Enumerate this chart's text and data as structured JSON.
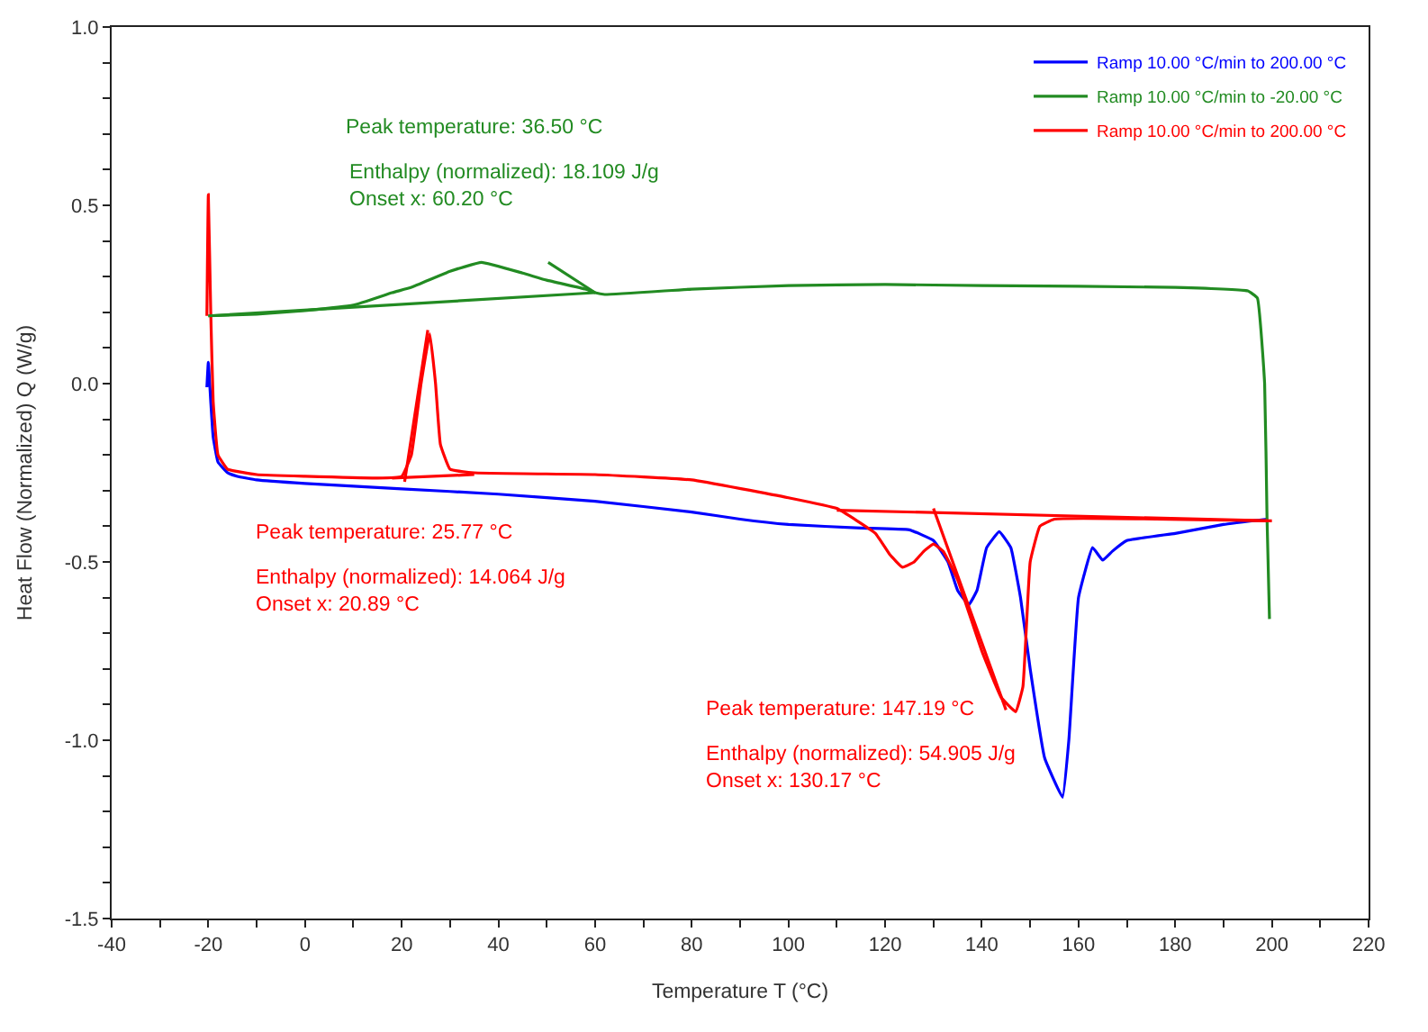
{
  "chart_data": {
    "type": "line",
    "xlabel": "Temperature T (°C)",
    "ylabel": "Heat Flow (Normalized) Q (W/g)",
    "xlim": [
      -40,
      220
    ],
    "ylim": [
      -1.5,
      1.0
    ],
    "xticks": [
      -40,
      {
        "value": -30,
        "label": null
      },
      -20,
      {
        "value": -10,
        "label": null
      },
      0,
      {
        "value": 10,
        "label": null
      },
      20,
      {
        "value": 30,
        "label": null
      },
      40,
      {
        "value": 50,
        "label": null
      },
      60,
      {
        "value": 70,
        "label": null
      },
      80,
      {
        "value": 90,
        "label": null
      },
      100,
      {
        "value": 110,
        "label": null
      },
      120,
      {
        "value": 130,
        "label": null
      },
      140,
      {
        "value": 150,
        "label": null
      },
      160,
      {
        "value": 170,
        "label": null
      },
      180,
      {
        "value": 190,
        "label": null
      },
      200,
      {
        "value": 210,
        "label": null
      },
      220
    ],
    "yticks": [
      {
        "value": -1.5,
        "label": "-1.5"
      },
      {
        "value": -1.4,
        "label": null
      },
      {
        "value": -1.3,
        "label": null
      },
      {
        "value": -1.2,
        "label": null
      },
      {
        "value": -1.1,
        "label": null
      },
      {
        "value": -1.0,
        "label": "-1.0"
      },
      {
        "value": -0.9,
        "label": null
      },
      {
        "value": -0.8,
        "label": null
      },
      {
        "value": -0.7,
        "label": null
      },
      {
        "value": -0.6,
        "label": null
      },
      {
        "value": -0.5,
        "label": "-0.5"
      },
      {
        "value": -0.4,
        "label": null
      },
      {
        "value": -0.3,
        "label": null
      },
      {
        "value": -0.2,
        "label": null
      },
      {
        "value": -0.1,
        "label": null
      },
      {
        "value": 0,
        "label": "0.0"
      },
      {
        "value": 0.1,
        "label": null
      },
      {
        "value": 0.2,
        "label": null
      },
      {
        "value": 0.3,
        "label": null
      },
      {
        "value": 0.4,
        "label": null
      },
      {
        "value": 0.5,
        "label": "0.5"
      },
      {
        "value": 0.6,
        "label": null
      },
      {
        "value": 0.7,
        "label": null
      },
      {
        "value": 0.8,
        "label": null
      },
      {
        "value": 0.9,
        "label": null
      },
      {
        "value": 1.0,
        "label": "1.0"
      }
    ],
    "legend": "top right",
    "marker": "none",
    "line_style": "solid",
    "series": [
      {
        "name": "Ramp 10.00 °C/min to 200.00 °C",
        "color": "#0000ff",
        "x": [
          -20.3,
          -20,
          -19.5,
          -19,
          -18,
          -16,
          -14,
          -10,
          0,
          20,
          40,
          60,
          80,
          90,
          100,
          115,
          125,
          130,
          133,
          135,
          137.3,
          139,
          141,
          143.6,
          146,
          148,
          150,
          153,
          156.7,
          158,
          160,
          162.9,
          165,
          167,
          170,
          180,
          190,
          199
        ],
        "values": [
          -0.01,
          0.06,
          -0.05,
          -0.15,
          -0.22,
          -0.25,
          -0.26,
          -0.27,
          -0.28,
          -0.295,
          -0.31,
          -0.33,
          -0.36,
          -0.38,
          -0.395,
          -0.405,
          -0.41,
          -0.44,
          -0.5,
          -0.58,
          -0.62,
          -0.58,
          -0.46,
          -0.415,
          -0.46,
          -0.6,
          -0.8,
          -1.05,
          -1.16,
          -1.0,
          -0.6,
          -0.46,
          -0.495,
          -0.47,
          -0.44,
          -0.42,
          -0.395,
          -0.38
        ]
      },
      {
        "name": "Ramp 10.00 °C/min to -20.00 °C",
        "color": "#228b22",
        "x": [
          199.5,
          199,
          198.5,
          197,
          195,
          180,
          140,
          120,
          100,
          80,
          62,
          60,
          58,
          50,
          45,
          36.5,
          30,
          22,
          18,
          10,
          0,
          -10,
          -20
        ],
        "values": [
          -0.66,
          -0.38,
          0.0,
          0.24,
          0.26,
          0.27,
          0.275,
          0.278,
          0.275,
          0.265,
          0.25,
          0.255,
          0.265,
          0.29,
          0.31,
          0.34,
          0.315,
          0.27,
          0.255,
          0.22,
          0.205,
          0.195,
          0.19
        ]
      },
      {
        "name": "Ramp 10.00 °C/min to 200.00 °C",
        "color": "#ff0000",
        "x": [
          -20.3,
          -20,
          -19.5,
          -19,
          -18,
          -16,
          -10,
          0,
          15,
          20,
          22,
          24,
          25.8,
          27,
          28,
          30,
          35,
          60,
          80,
          100,
          110,
          118,
          121,
          123.6,
          126,
          128,
          130,
          132,
          135,
          140,
          144,
          147,
          148.5,
          150,
          152,
          155,
          199
        ],
        "values": [
          0.19,
          0.53,
          0.2,
          -0.05,
          -0.2,
          -0.24,
          -0.255,
          -0.26,
          -0.265,
          -0.26,
          -0.2,
          0.0,
          0.14,
          0.0,
          -0.17,
          -0.24,
          -0.25,
          -0.255,
          -0.27,
          -0.32,
          -0.35,
          -0.42,
          -0.48,
          -0.515,
          -0.5,
          -0.47,
          -0.45,
          -0.47,
          -0.55,
          -0.75,
          -0.88,
          -0.92,
          -0.85,
          -0.5,
          -0.4,
          -0.38,
          -0.385
        ]
      },
      {
        "color": "#228b22",
        "x": [
          -20,
          60
        ],
        "values": [
          0.19,
          0.255
        ]
      },
      {
        "color": "#228b22",
        "x": [
          50.3,
          60
        ],
        "values": [
          0.34,
          0.255
        ]
      },
      {
        "color": "#ff0000",
        "x": [
          18,
          35
        ],
        "values": [
          -0.265,
          -0.255
        ]
      },
      {
        "color": "#ff0000",
        "x": [
          20.6,
          25.4
        ],
        "values": [
          -0.275,
          0.15
        ]
      },
      {
        "color": "#ff0000",
        "x": [
          110,
          200
        ],
        "values": [
          -0.355,
          -0.385
        ]
      },
      {
        "color": "#ff0000",
        "x": [
          130,
          145
        ],
        "values": [
          -0.35,
          -0.915
        ]
      }
    ],
    "annotations": [
      "Peak temperature: 36.50 °C",
      "Enthalpy (normalized): 18.109 J/g\nOnset x: 60.20 °C",
      "Peak temperature: 25.77 °C",
      "Enthalpy (normalized): 14.064 J/g\nOnset x: 20.89 °C",
      "Peak temperature: 147.19 °C",
      "Enthalpy (normalized): 54.905 J/g\nOnset x: 130.17 °C"
    ]
  }
}
